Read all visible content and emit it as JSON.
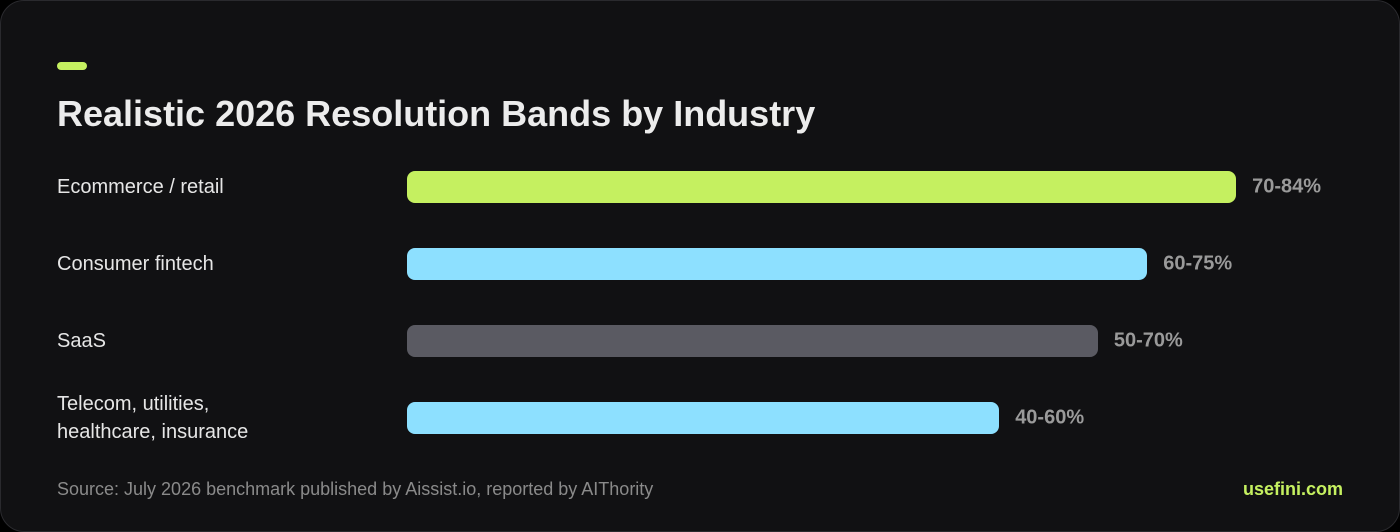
{
  "chart_data": {
    "type": "bar",
    "orientation": "horizontal",
    "title": "Realistic 2026 Resolution Bands by Industry",
    "categories": [
      "Ecommerce / retail",
      "Consumer fintech",
      "SaaS",
      "Telecom, utilities, healthcare, insurance"
    ],
    "values": [
      84,
      75,
      70,
      60
    ],
    "value_labels": [
      "70-84%",
      "60-75%",
      "50-70%",
      "40-60%"
    ],
    "colors": [
      "#c5f060",
      "#8de0ff",
      "#5a5a62",
      "#8de0ff"
    ],
    "source": "Source: July 2026 benchmark published by Aissist.io, reported by AIThority",
    "brand": "usefini.com"
  }
}
